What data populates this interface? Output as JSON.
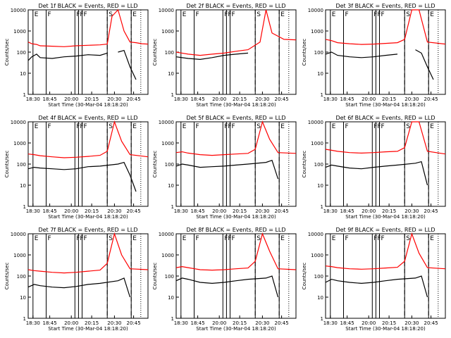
{
  "colors": {
    "events": "#000000",
    "lld": "#ff0000",
    "background": "#ffffff",
    "axes": "#000000"
  },
  "shared": {
    "subtitle_text": "Start Time (30-Mar-04 18:18:20)",
    "ylabel": "Counts/sec",
    "yticks": [
      "1",
      "10",
      "100",
      "1000",
      "10000"
    ],
    "xticks": [
      "18:30",
      "18:45",
      "20:00",
      "20:15",
      "20:30",
      "20:45"
    ],
    "flags": [
      "E",
      "F",
      "F",
      "F",
      "F",
      "S",
      "E"
    ]
  },
  "chart_data": [
    {
      "type": "line",
      "title": "Det 1f BLACK = Events, RED = LLD",
      "xlabel": "Start Time (30-Mar-04 18:18:20)",
      "ylabel": "Counts/sec",
      "scale": "log",
      "ylim": [
        1,
        10000
      ],
      "x_ticks": [
        "18:30",
        "18:45",
        "20:00",
        "20:15",
        "20:30",
        "20:45"
      ],
      "series": [
        {
          "name": "Events",
          "color": "#000000",
          "x": [
            0.0,
            0.03,
            0.07,
            0.1,
            0.2,
            0.3,
            0.4,
            0.5,
            0.6,
            0.66,
            0.7,
            0.75,
            0.8,
            0.85,
            0.9,
            0.95,
            1.0
          ],
          "y": [
            40,
            60,
            80,
            55,
            50,
            60,
            65,
            75,
            70,
            90,
            null,
            100,
            120,
            20,
            5,
            null,
            null
          ]
        },
        {
          "name": "LLD",
          "color": "#ff0000",
          "x": [
            0.0,
            0.03,
            0.07,
            0.1,
            0.2,
            0.3,
            0.4,
            0.5,
            0.6,
            0.66,
            0.7,
            0.75,
            0.8,
            0.85,
            0.9,
            0.95,
            1.0
          ],
          "y": [
            300,
            250,
            230,
            200,
            190,
            180,
            200,
            210,
            220,
            240,
            5000,
            12000,
            1000,
            300,
            280,
            250,
            240
          ]
        }
      ]
    },
    {
      "type": "line",
      "title": "Det 2f BLACK = Events, RED = LLD",
      "xlabel": "Start Time (30-Mar-04 18:18:20)",
      "ylabel": "Counts/sec",
      "scale": "log",
      "ylim": [
        1,
        10000
      ],
      "x_ticks": [
        "18:30",
        "18:45",
        "20:00",
        "20:15",
        "20:30",
        "20:45"
      ],
      "series": [
        {
          "name": "Events",
          "color": "#000000",
          "x": [
            0.0,
            0.1,
            0.2,
            0.3,
            0.4,
            0.5,
            0.6,
            0.7,
            0.8,
            0.9,
            1.0
          ],
          "y": [
            60,
            50,
            45,
            55,
            70,
            80,
            90,
            null,
            null,
            null,
            null
          ]
        },
        {
          "name": "LLD",
          "color": "#ff0000",
          "x": [
            0.0,
            0.1,
            0.2,
            0.3,
            0.4,
            0.5,
            0.6,
            0.7,
            0.75,
            0.8,
            0.9,
            1.0
          ],
          "y": [
            100,
            80,
            70,
            80,
            90,
            110,
            130,
            300,
            12000,
            800,
            400,
            380
          ]
        }
      ]
    },
    {
      "type": "line",
      "title": "Det 3f BLACK = Events, RED = LLD",
      "xlabel": "Start Time (30-Mar-04 18:18:20)",
      "ylabel": "Counts/sec",
      "scale": "log",
      "ylim": [
        1,
        10000
      ],
      "x_ticks": [
        "18:30",
        "18:45",
        "20:00",
        "20:15",
        "20:30",
        "20:45"
      ],
      "series": [
        {
          "name": "Events",
          "color": "#000000",
          "x": [
            0.0,
            0.05,
            0.1,
            0.2,
            0.3,
            0.4,
            0.5,
            0.6,
            0.7,
            0.75,
            0.8,
            0.85,
            0.9
          ],
          "y": [
            80,
            100,
            70,
            60,
            55,
            60,
            70,
            80,
            null,
            130,
            90,
            20,
            5
          ]
        },
        {
          "name": "LLD",
          "color": "#ff0000",
          "x": [
            0.0,
            0.05,
            0.1,
            0.2,
            0.3,
            0.4,
            0.5,
            0.6,
            0.66,
            0.72,
            0.78,
            0.85,
            1.0
          ],
          "y": [
            400,
            350,
            280,
            250,
            230,
            240,
            260,
            280,
            400,
            12000,
            12000,
            300,
            240
          ]
        }
      ]
    },
    {
      "type": "line",
      "title": "Det 4f BLACK = Events, RED = LLD",
      "xlabel": "Start Time (30-Mar-04 18:18:20)",
      "ylabel": "Counts/sec",
      "scale": "log",
      "ylim": [
        1,
        10000
      ],
      "x_ticks": [
        "18:30",
        "18:45",
        "20:00",
        "20:15",
        "20:30",
        "20:45"
      ],
      "series": [
        {
          "name": "Events",
          "color": "#000000",
          "x": [
            0.0,
            0.05,
            0.1,
            0.2,
            0.3,
            0.4,
            0.5,
            0.6,
            0.75,
            0.8,
            0.85,
            0.9
          ],
          "y": [
            60,
            70,
            65,
            60,
            55,
            60,
            75,
            80,
            100,
            120,
            30,
            5
          ]
        },
        {
          "name": "LLD",
          "color": "#ff0000",
          "x": [
            0.0,
            0.05,
            0.1,
            0.2,
            0.3,
            0.4,
            0.5,
            0.6,
            0.66,
            0.72,
            0.78,
            0.85,
            1.0
          ],
          "y": [
            300,
            280,
            250,
            220,
            200,
            210,
            230,
            260,
            400,
            12000,
            1200,
            280,
            220
          ]
        }
      ]
    },
    {
      "type": "line",
      "title": "Det 5f BLACK = Events, RED = LLD",
      "xlabel": "Start Time (30-Mar-04 18:18:20)",
      "ylabel": "Counts/sec",
      "scale": "log",
      "ylim": [
        1,
        10000
      ],
      "x_ticks": [
        "18:30",
        "18:45",
        "20:00",
        "20:15",
        "20:30",
        "20:45"
      ],
      "series": [
        {
          "name": "Events",
          "color": "#000000",
          "x": [
            0.0,
            0.05,
            0.1,
            0.2,
            0.3,
            0.4,
            0.5,
            0.6,
            0.75,
            0.8,
            0.85
          ],
          "y": [
            80,
            100,
            90,
            70,
            75,
            80,
            90,
            100,
            120,
            150,
            20
          ]
        },
        {
          "name": "LLD",
          "color": "#ff0000",
          "x": [
            0.0,
            0.05,
            0.1,
            0.2,
            0.3,
            0.4,
            0.5,
            0.6,
            0.66,
            0.72,
            0.78,
            0.85,
            1.0
          ],
          "y": [
            350,
            380,
            330,
            280,
            260,
            280,
            300,
            320,
            500,
            12000,
            1500,
            350,
            320
          ]
        }
      ]
    },
    {
      "type": "line",
      "title": "Det 6f BLACK = Events, RED = LLD",
      "xlabel": "Start Time (30-Mar-04 18:18:20)",
      "ylabel": "Counts/sec",
      "scale": "log",
      "ylim": [
        1,
        10000
      ],
      "x_ticks": [
        "18:30",
        "18:45",
        "20:00",
        "20:15",
        "20:30",
        "20:45"
      ],
      "series": [
        {
          "name": "Events",
          "color": "#000000",
          "x": [
            0.0,
            0.05,
            0.1,
            0.2,
            0.3,
            0.4,
            0.5,
            0.6,
            0.75,
            0.8,
            0.85
          ],
          "y": [
            70,
            90,
            80,
            65,
            60,
            70,
            80,
            90,
            110,
            130,
            10
          ]
        },
        {
          "name": "LLD",
          "color": "#ff0000",
          "x": [
            0.0,
            0.05,
            0.1,
            0.2,
            0.3,
            0.4,
            0.5,
            0.6,
            0.66,
            0.72,
            0.78,
            0.85,
            1.0
          ],
          "y": [
            500,
            450,
            400,
            350,
            330,
            350,
            380,
            400,
            600,
            12000,
            12000,
            400,
            300
          ]
        }
      ]
    },
    {
      "type": "line",
      "title": "Det 7f BLACK = Events, RED = LLD",
      "xlabel": "Start Time (30-Mar-04 18:18:20)",
      "ylabel": "Counts/sec",
      "scale": "log",
      "ylim": [
        1,
        10000
      ],
      "x_ticks": [
        "18:30",
        "18:45",
        "20:00",
        "20:15",
        "20:30",
        "20:45"
      ],
      "series": [
        {
          "name": "Events",
          "color": "#000000",
          "x": [
            0.0,
            0.05,
            0.1,
            0.2,
            0.3,
            0.4,
            0.5,
            0.6,
            0.75,
            0.8,
            0.85
          ],
          "y": [
            30,
            40,
            35,
            30,
            28,
            32,
            40,
            45,
            60,
            80,
            10
          ]
        },
        {
          "name": "LLD",
          "color": "#ff0000",
          "x": [
            0.0,
            0.05,
            0.1,
            0.2,
            0.3,
            0.4,
            0.5,
            0.6,
            0.66,
            0.72,
            0.78,
            0.85,
            1.0
          ],
          "y": [
            200,
            180,
            170,
            150,
            140,
            150,
            170,
            190,
            400,
            12000,
            1000,
            220,
            200
          ]
        }
      ]
    },
    {
      "type": "line",
      "title": "Det 8f BLACK = Events, RED = LLD",
      "xlabel": "Start Time (30-Mar-04 18:18:20)",
      "ylabel": "Counts/sec",
      "scale": "log",
      "ylim": [
        1,
        10000
      ],
      "x_ticks": [
        "18:30",
        "18:45",
        "20:00",
        "20:15",
        "20:30",
        "20:45"
      ],
      "series": [
        {
          "name": "Events",
          "color": "#000000",
          "x": [
            0.0,
            0.05,
            0.1,
            0.2,
            0.3,
            0.4,
            0.5,
            0.6,
            0.75,
            0.8,
            0.85
          ],
          "y": [
            60,
            80,
            70,
            50,
            45,
            50,
            60,
            70,
            80,
            100,
            10
          ]
        },
        {
          "name": "LLD",
          "color": "#ff0000",
          "x": [
            0.0,
            0.05,
            0.1,
            0.2,
            0.3,
            0.4,
            0.5,
            0.6,
            0.66,
            0.72,
            0.78,
            0.85,
            1.0
          ],
          "y": [
            250,
            280,
            250,
            200,
            190,
            200,
            220,
            240,
            500,
            12000,
            1500,
            220,
            200
          ]
        }
      ]
    },
    {
      "type": "line",
      "title": "Det 9f BLACK = Events, RED = LLD",
      "xlabel": "Start Time (30-Mar-04 18:18:20)",
      "ylabel": "Counts/sec",
      "scale": "log",
      "ylim": [
        1,
        10000
      ],
      "x_ticks": [
        "18:30",
        "18:45",
        "20:00",
        "20:15",
        "20:30",
        "20:45"
      ],
      "series": [
        {
          "name": "Events",
          "color": "#000000",
          "x": [
            0.0,
            0.05,
            0.1,
            0.2,
            0.3,
            0.4,
            0.5,
            0.6,
            0.75,
            0.8,
            0.85
          ],
          "y": [
            50,
            70,
            60,
            50,
            45,
            50,
            60,
            70,
            80,
            100,
            10
          ]
        },
        {
          "name": "LLD",
          "color": "#ff0000",
          "x": [
            0.0,
            0.05,
            0.1,
            0.2,
            0.3,
            0.4,
            0.5,
            0.6,
            0.66,
            0.72,
            0.78,
            0.85,
            1.0
          ],
          "y": [
            300,
            280,
            250,
            220,
            210,
            220,
            240,
            260,
            500,
            12000,
            1200,
            250,
            220
          ]
        }
      ]
    }
  ]
}
